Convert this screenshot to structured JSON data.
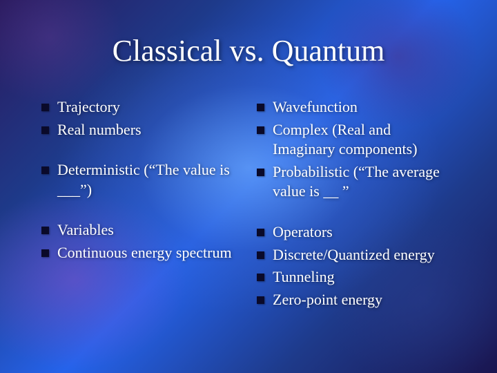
{
  "title": "Classical vs. Quantum",
  "title_fontsize": 44,
  "body_fontsize": 22,
  "text_color": "#ffffff",
  "bullet_color": "#0a0a2a",
  "font_family": "Times New Roman",
  "background_colors": {
    "primary_glow": "rgba(120,180,255,0.6)",
    "purple_cloud": "rgba(140,80,200,0.5)",
    "deep_blue": "#1e3a8a",
    "violet_corner": "#2a1a5e"
  },
  "left": {
    "g1": {
      "i0": "Trajectory",
      "i1": "Real numbers"
    },
    "g2": {
      "i0": "Deterministic (“The value is ___”)"
    },
    "g3": {
      "i0": "Variables",
      "i1": "Continuous energy spectrum"
    }
  },
  "right": {
    "g1": {
      "i0": "Wavefunction",
      "i1": "Complex (Real and Imaginary components)",
      "i2": "Probabilistic (“The average value is __ ”"
    },
    "g2": {
      "i0": "Operators",
      "i1": "Discrete/Quantized energy",
      "i2": "Tunneling",
      "i3": "Zero-point energy"
    }
  }
}
